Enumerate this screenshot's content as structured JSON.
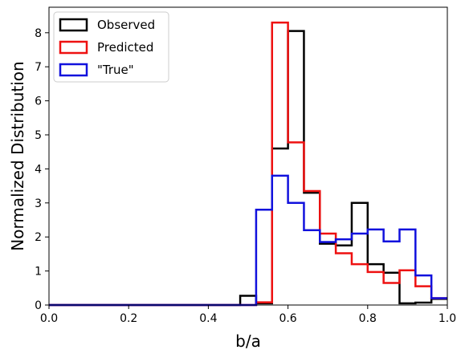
{
  "chart_data": {
    "type": "histogram-step",
    "title": "",
    "xlabel": "b/a",
    "ylabel": "Normalized Distribution",
    "xlim": [
      0.0,
      1.0
    ],
    "ylim": [
      0,
      8.75
    ],
    "xticks": [
      "0.0",
      "0.2",
      "0.4",
      "0.6",
      "0.8",
      "1.0"
    ],
    "xtick_values": [
      0.0,
      0.2,
      0.4,
      0.6,
      0.8,
      1.0
    ],
    "yticks": [
      "0",
      "1",
      "2",
      "3",
      "4",
      "5",
      "6",
      "7",
      "8"
    ],
    "ytick_values": [
      0,
      1,
      2,
      3,
      4,
      5,
      6,
      7,
      8
    ],
    "grid": false,
    "legend_position": "top-left",
    "series": [
      {
        "name": "Observed",
        "color": "#000000",
        "edges": [
          0.0,
          0.48,
          0.52,
          0.56,
          0.6,
          0.64,
          0.68,
          0.72,
          0.76,
          0.8,
          0.84,
          0.88,
          0.92,
          0.96,
          1.0
        ],
        "values": [
          0,
          0.27,
          0.05,
          4.6,
          8.05,
          3.3,
          1.8,
          1.75,
          3.0,
          1.2,
          0.95,
          0.05,
          0.07,
          0.18
        ]
      },
      {
        "name": "Predicted",
        "color": "#ee1111",
        "edges": [
          0.0,
          0.52,
          0.56,
          0.6,
          0.64,
          0.68,
          0.72,
          0.76,
          0.8,
          0.84,
          0.88,
          0.92,
          0.96,
          1.0
        ],
        "values": [
          0,
          0.08,
          8.3,
          4.78,
          3.35,
          2.1,
          1.52,
          1.2,
          0.97,
          0.65,
          1.02,
          0.55,
          0.2
        ]
      },
      {
        "name": "\"True\"",
        "color": "#1111dd",
        "edges": [
          0.0,
          0.52,
          0.56,
          0.6,
          0.64,
          0.68,
          0.72,
          0.76,
          0.8,
          0.84,
          0.88,
          0.92,
          0.96,
          1.0
        ],
        "values": [
          0,
          2.8,
          3.8,
          3.0,
          2.2,
          1.85,
          1.93,
          2.1,
          2.22,
          1.87,
          2.22,
          0.87,
          0.2
        ]
      }
    ]
  }
}
